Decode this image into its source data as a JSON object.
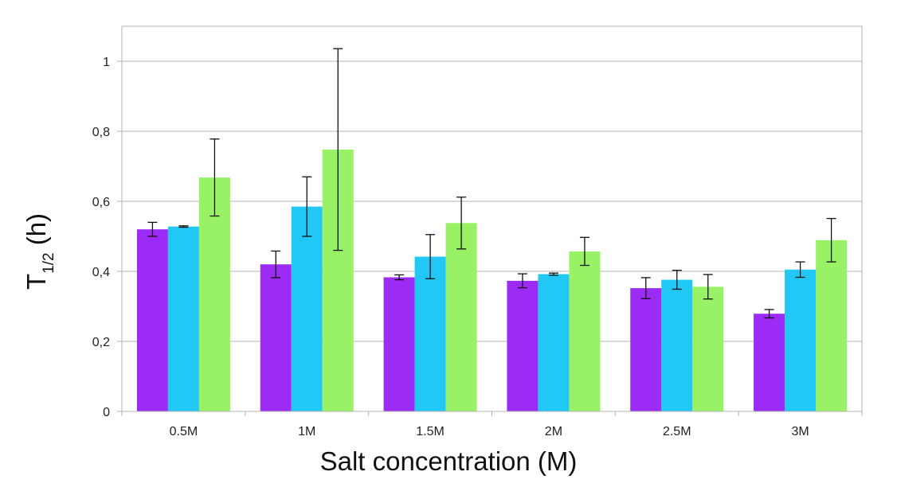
{
  "chart_data": {
    "type": "bar",
    "title": "",
    "xlabel": "Salt concentration (M)",
    "ylabel_main": "T",
    "ylabel_sub": "1/2",
    "ylabel_tail": " (h)",
    "categories": [
      "0.5M",
      "1M",
      "1.5M",
      "2M",
      "2.5M",
      "3M"
    ],
    "ylim": [
      0,
      1.1
    ],
    "yticks": [
      0,
      0.2,
      0.4,
      0.6,
      0.8,
      1
    ],
    "ytick_labels": [
      "0",
      "0,2",
      "0,4",
      "0,6",
      "0,8",
      "1"
    ],
    "grid": true,
    "legend": "none",
    "series": [
      {
        "color": "#9b2bf5",
        "values": [
          0.52,
          0.42,
          0.383,
          0.373,
          0.352,
          0.279
        ],
        "errors": [
          0.02,
          0.038,
          0.007,
          0.02,
          0.03,
          0.012
        ]
      },
      {
        "color": "#22c8f5",
        "values": [
          0.528,
          0.585,
          0.442,
          0.392,
          0.376,
          0.405
        ],
        "errors": [
          0.002,
          0.085,
          0.063,
          0.003,
          0.027,
          0.022
        ]
      },
      {
        "color": "#99f266",
        "values": [
          0.668,
          0.748,
          0.538,
          0.457,
          0.356,
          0.489
        ],
        "errors": [
          0.11,
          0.288,
          0.074,
          0.04,
          0.035,
          0.062
        ]
      }
    ]
  }
}
